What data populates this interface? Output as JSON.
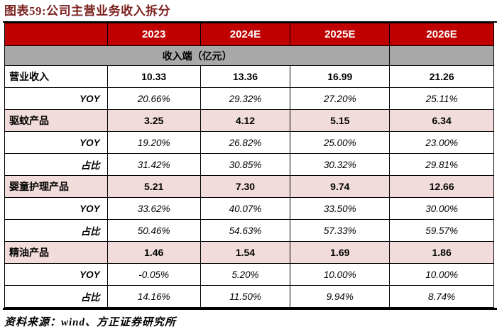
{
  "title": "图表59:公司主营业务收入拆分",
  "source": "资料来源：wind、方正证券研究所",
  "colors": {
    "header_red": "#c00000",
    "section_gray": "#a8a8a8",
    "product_pink": "#f1dcdb",
    "title_dark_red": "#7c2422",
    "border_black": "#000000"
  },
  "table": {
    "year_headers": [
      "2023",
      "2024E",
      "2025E",
      "2026E"
    ],
    "section_header": "收入端（亿元）",
    "rows": [
      {
        "label": "营业收入",
        "style": "product-white",
        "values": [
          "10.33",
          "13.36",
          "16.99",
          "21.26"
        ]
      },
      {
        "label": "YOY",
        "style": "sub",
        "values": [
          "20.66%",
          "29.32%",
          "27.20%",
          "25.11%"
        ]
      },
      {
        "label": "驱蚊产品",
        "style": "product-pink",
        "values": [
          "3.25",
          "4.12",
          "5.15",
          "6.34"
        ]
      },
      {
        "label": "YOY",
        "style": "sub",
        "values": [
          "19.20%",
          "26.82%",
          "25.00%",
          "23.00%"
        ]
      },
      {
        "label": "占比",
        "style": "sub",
        "values": [
          "31.42%",
          "30.85%",
          "30.32%",
          "29.81%"
        ]
      },
      {
        "label": "婴童护理产品",
        "style": "product-pink",
        "values": [
          "5.21",
          "7.30",
          "9.74",
          "12.66"
        ]
      },
      {
        "label": "YOY",
        "style": "sub",
        "values": [
          "33.62%",
          "40.07%",
          "33.50%",
          "30.00%"
        ]
      },
      {
        "label": "占比",
        "style": "sub",
        "values": [
          "50.46%",
          "54.63%",
          "57.33%",
          "59.57%"
        ]
      },
      {
        "label": "精油产品",
        "style": "product-pink",
        "values": [
          "1.46",
          "1.54",
          "1.69",
          "1.86"
        ]
      },
      {
        "label": "YOY",
        "style": "sub",
        "values": [
          "-0.05%",
          "5.20%",
          "10.00%",
          "10.00%"
        ]
      },
      {
        "label": "占比",
        "style": "sub",
        "values": [
          "14.16%",
          "11.50%",
          "9.94%",
          "8.74%"
        ]
      }
    ]
  }
}
